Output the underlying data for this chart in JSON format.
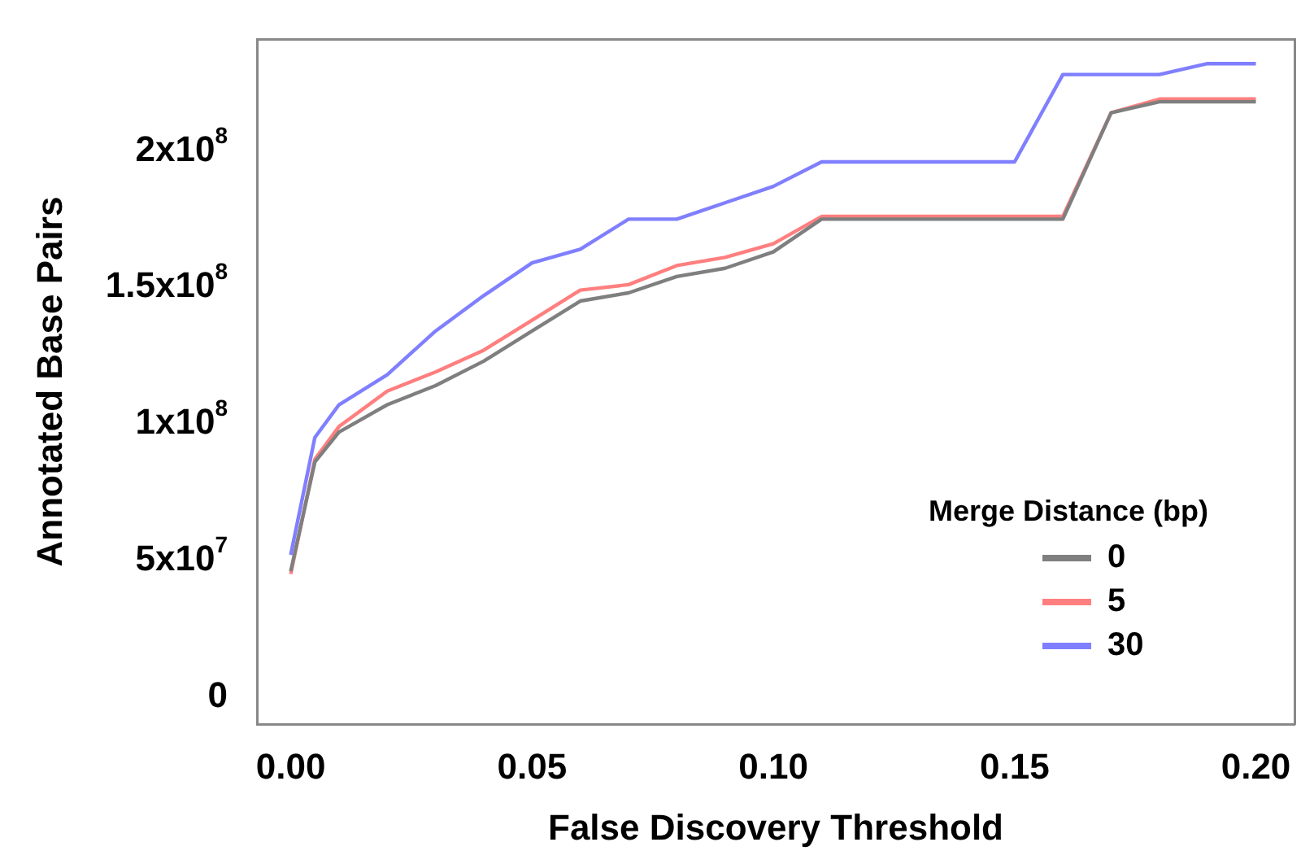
{
  "chart_data": {
    "type": "line",
    "xlabel": "False Discovery Threshold",
    "ylabel": "Annotated Base Pairs",
    "legend_title": "Merge Distance (bp)",
    "x": [
      0,
      0.005,
      0.01,
      0.02,
      0.03,
      0.04,
      0.05,
      0.06,
      0.07,
      0.08,
      0.09,
      0.1,
      0.11,
      0.12,
      0.13,
      0.14,
      0.15,
      0.16,
      0.17,
      0.18,
      0.19,
      0.2
    ],
    "series": [
      {
        "name": "0",
        "color": "#7f7f7f",
        "values": [
          46000000,
          86000000,
          97000000,
          107000000,
          114000000,
          123000000,
          134000000,
          145000000,
          148000000,
          154000000,
          157000000,
          163000000,
          175000000,
          175000000,
          175000000,
          175000000,
          175000000,
          175000000,
          214000000,
          218000000,
          218000000,
          218000000
        ]
      },
      {
        "name": "5",
        "color": "#ff7f7f",
        "values": [
          45000000,
          87000000,
          99000000,
          112000000,
          119000000,
          127000000,
          138000000,
          149000000,
          151000000,
          158000000,
          161000000,
          166000000,
          176000000,
          176000000,
          176000000,
          176000000,
          176000000,
          176000000,
          214000000,
          219000000,
          219000000,
          219000000
        ]
      },
      {
        "name": "30",
        "color": "#7f7fff",
        "values": [
          52000000,
          95000000,
          107000000,
          118000000,
          134000000,
          147000000,
          159000000,
          164000000,
          175000000,
          175000000,
          181000000,
          187000000,
          196000000,
          196000000,
          196000000,
          196000000,
          196000000,
          228000000,
          228000000,
          228000000,
          232000000,
          232000000
        ]
      }
    ],
    "xlim": [
      -0.007,
      0.208
    ],
    "ylim": [
      -10000000,
      241000000
    ],
    "xticks": [
      {
        "value": 0,
        "label": "0.00"
      },
      {
        "value": 0.05,
        "label": "0.05"
      },
      {
        "value": 0.1,
        "label": "0.10"
      },
      {
        "value": 0.15,
        "label": "0.15"
      },
      {
        "value": 0.2,
        "label": "0.20"
      }
    ],
    "yticks": [
      0,
      {
        "value": 50000000,
        "label": "5x10$^{7}$"
      },
      {
        "value": 100000000,
        "label": "1x10$^{8}$"
      },
      {
        "value": 150000000,
        "label": "1.5x10$^{8}$"
      },
      {
        "value": 200000000,
        "label": "2x10$^{8}$"
      }
    ],
    "grid": false,
    "legend": "bottom right",
    "marker": "none",
    "line_style": "solid"
  }
}
